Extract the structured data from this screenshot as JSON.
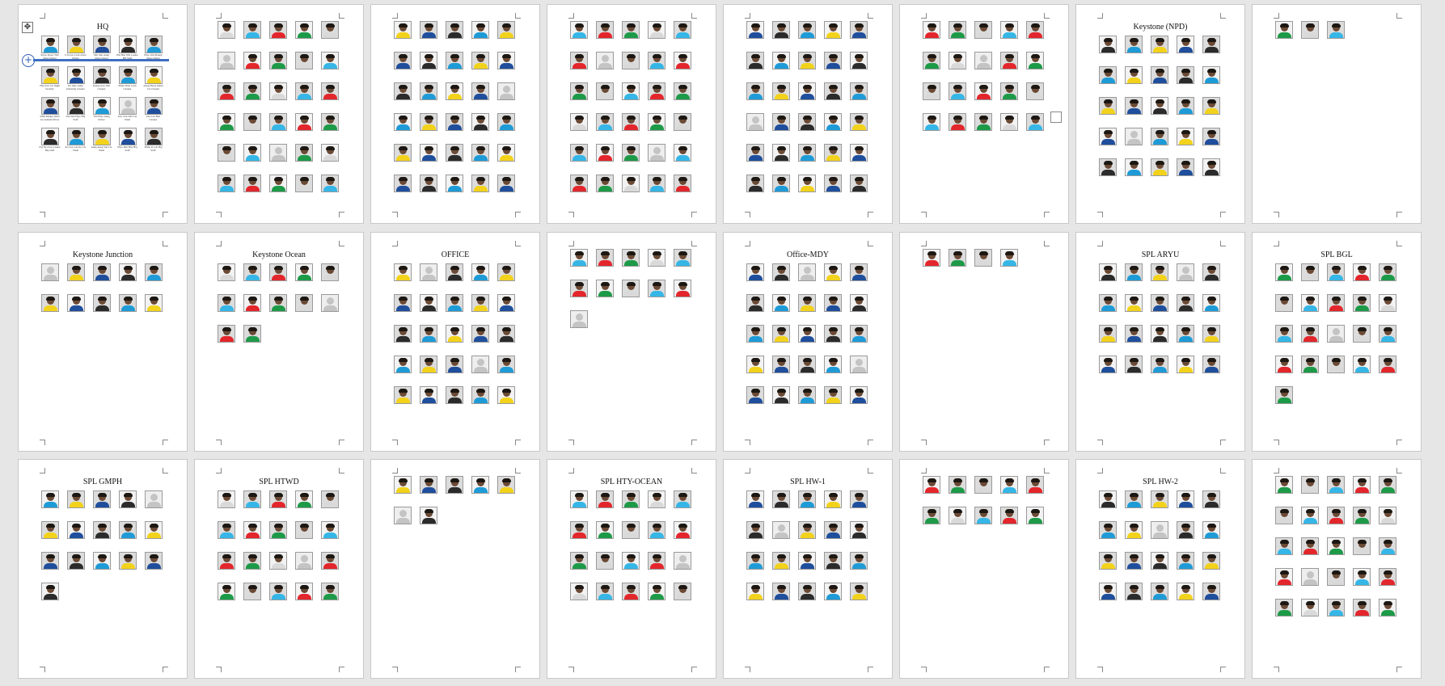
{
  "pages": [
    {
      "title": "HQ",
      "count": 20
    },
    {
      "title": "",
      "count": 30
    },
    {
      "title": "",
      "count": 30
    },
    {
      "title": "",
      "count": 30
    },
    {
      "title": "",
      "count": 30
    },
    {
      "title": "",
      "count": 20
    },
    {
      "title": "Keystone (NPD)",
      "count": 25
    },
    {
      "title": "",
      "count": 3
    },
    {
      "title": "Keystone Junction",
      "count": 10
    },
    {
      "title": "Keystone Ocean",
      "count": 12
    },
    {
      "title": "OFFICE",
      "count": 25
    },
    {
      "title": "",
      "count": 11
    },
    {
      "title": "Office-MDY",
      "count": 25
    },
    {
      "title": "",
      "count": 4
    },
    {
      "title": "SPL ARYU",
      "count": 20
    },
    {
      "title": "SPL BGL",
      "count": 21
    },
    {
      "title": "SPL GMPH",
      "count": 16
    },
    {
      "title": "SPL HTWD",
      "count": 20
    },
    {
      "title": "",
      "count": 7
    },
    {
      "title": "SPL HTY-OCEAN",
      "count": 20
    },
    {
      "title": "SPL HW-1",
      "count": 20
    },
    {
      "title": "",
      "count": 10
    },
    {
      "title": "SPL HW-2",
      "count": 20
    },
    {
      "title": "",
      "count": 25
    }
  ],
  "colors": {
    "background": "#e6e6e6",
    "page": "#ffffff",
    "selection": "#3d6fc2",
    "shirts": [
      "#1e9bd7",
      "#e3262c",
      "#f2d21b",
      "#1d9a48",
      "#1f4e9c",
      "#d9d9d9",
      "#2b2b2b",
      "#35b6e6"
    ]
  },
  "icons": {
    "move_handle": "move-handle-icon",
    "insert_row": "add-row-icon"
  },
  "captions": {
    "hq": [
      "Kyaw Kyaw Win driver Driver",
      "U Kyaw Lwin driver Driver",
      "MG MG Aung driver Driver",
      "Hla Han Win Leader HQ Staff",
      "Phyo Wai Maung driver Driver",
      "Thet Zaw Oo Night Security",
      "Ko Myo Aung (Outside) Cleaner",
      "Kaung Zaw Win Cleaner",
      "Shine Shan Lwin Cleaner",
      "Aung Phone Myint Car Cleaner",
      "Khin Maung Winn Accountant Driver",
      "Pan Wai Phyo HQ Staff",
      "Wai Phyo Aung Driver",
      "Zaw Zaw Win Car Wash",
      "Zaw Lin Htet Cleaner",
      "Nyi Nyi Zaw Leader HQ Staff",
      "Ko Zaw Lin Oo Car Wash",
      "Aung Aung Tun Car Wash",
      "Phyo Min Htet HQ Staff",
      "Thiha Ye Lin HQ Staff"
    ]
  }
}
